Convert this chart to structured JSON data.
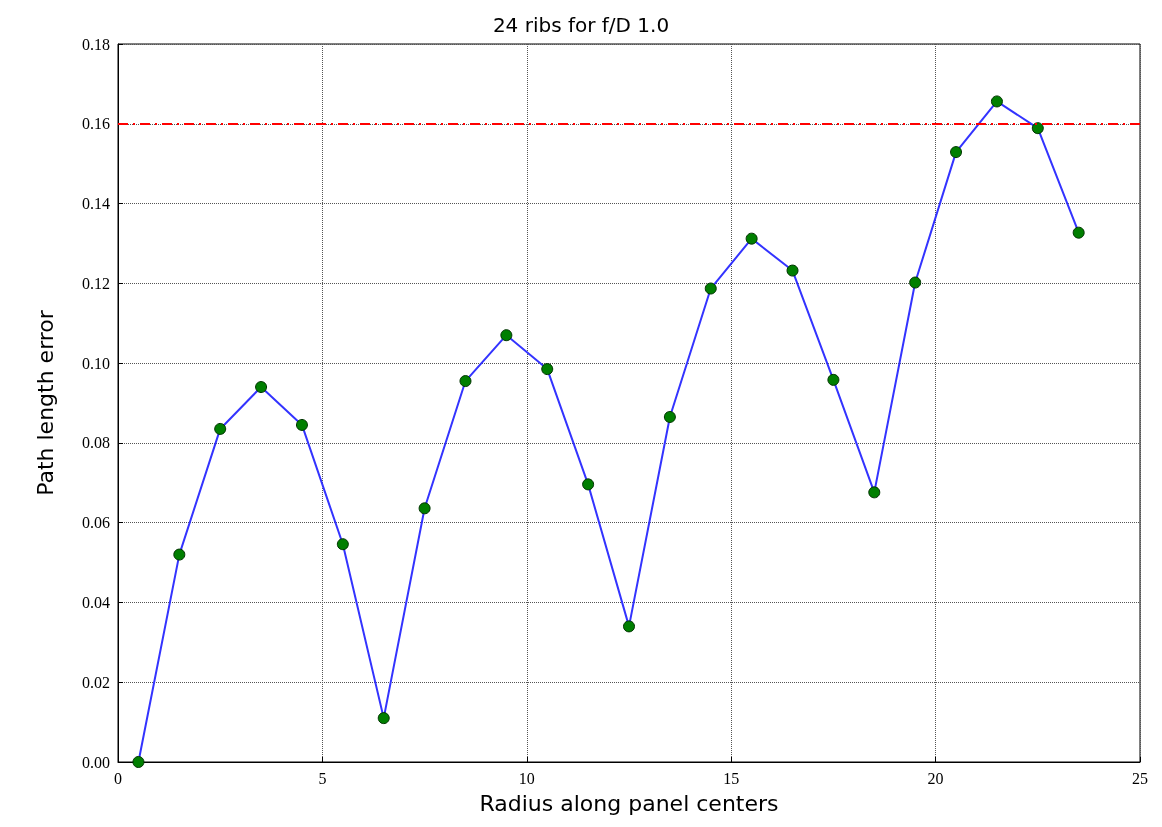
{
  "chart_data": {
    "type": "line",
    "title": "24 ribs for f/D 1.0",
    "xlabel": "Radius along panel centers",
    "ylabel": "Path length error",
    "x": [
      0.5,
      1.5,
      2.5,
      3.5,
      4.5,
      5.5,
      6.5,
      7.5,
      8.5,
      9.5,
      10.5,
      11.5,
      12.5,
      13.5,
      14.5,
      15.5,
      16.5,
      17.5,
      18.5,
      19.5,
      20.5,
      21.5,
      22.5,
      23.5
    ],
    "series": [
      {
        "color": "#3333ff",
        "values": [
          0.0,
          0.052,
          0.0835,
          0.094,
          0.0845,
          0.0546,
          0.011,
          0.0636,
          0.0955,
          0.107,
          0.0985,
          0.0696,
          0.034,
          0.0865,
          0.1187,
          0.1312,
          0.1232,
          0.0958,
          0.0676,
          0.1202,
          0.1529,
          0.1656,
          0.1589,
          0.1327
        ]
      }
    ],
    "marker": "circle",
    "line_style": "solid",
    "xlim": [
      0,
      25
    ],
    "xticks": [
      0,
      5,
      10,
      15,
      20,
      25
    ],
    "ylim": [
      0,
      0.18
    ],
    "yticks": [
      {
        "value": 0,
        "label": "0.00"
      },
      {
        "value": 0.02,
        "label": "0.02"
      },
      {
        "value": 0.04,
        "label": "0.04"
      },
      {
        "value": 0.06,
        "label": "0.06"
      },
      {
        "value": 0.08,
        "label": "0.08"
      },
      {
        "value": 0.1,
        "label": "0.10"
      },
      {
        "value": 0.12,
        "label": "0.12"
      },
      {
        "value": 0.14,
        "label": "0.14"
      },
      {
        "value": 0.16,
        "label": "0.16"
      },
      {
        "value": 0.18,
        "label": "0.18"
      }
    ],
    "ref_lines": [
      {
        "axis": "y",
        "value": 0.16,
        "color": "#ff0000",
        "line_style": "dashed"
      }
    ],
    "grid": true
  }
}
